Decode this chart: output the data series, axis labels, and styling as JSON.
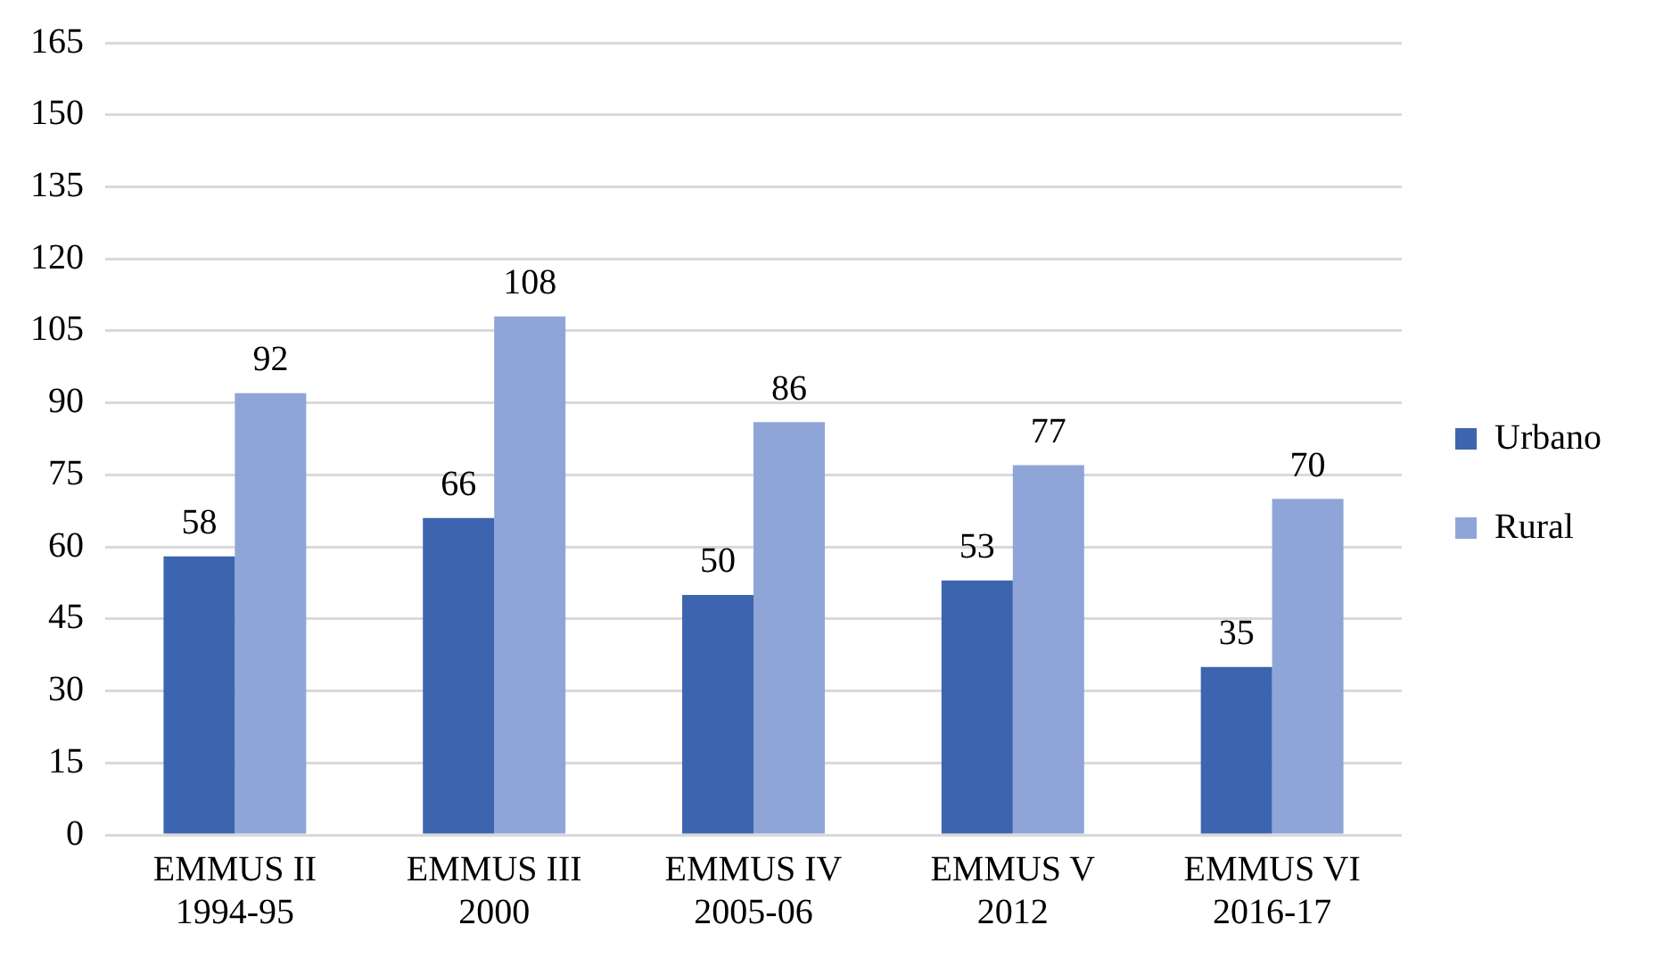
{
  "chart_data": {
    "type": "bar",
    "categories": [
      "EMMUS II\n1994-95",
      "EMMUS III\n2000",
      "EMMUS IV\n2005-06",
      "EMMUS V\n2012",
      "EMMUS VI\n2016-17"
    ],
    "series": [
      {
        "name": "Urbano",
        "color": "#3d64ae",
        "values": [
          58,
          66,
          50,
          53,
          35
        ]
      },
      {
        "name": "Rural",
        "color": "#8fa5d7",
        "values": [
          92,
          108,
          86,
          77,
          70
        ]
      }
    ],
    "ylim": [
      0,
      165
    ],
    "yticks": [
      0,
      15,
      30,
      45,
      60,
      75,
      90,
      105,
      120,
      135,
      150,
      165
    ],
    "grid": "y",
    "legend": "right",
    "data_labels": true
  }
}
